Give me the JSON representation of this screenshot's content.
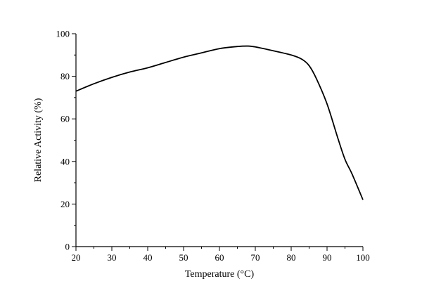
{
  "chart_data": {
    "type": "line",
    "title": "",
    "xlabel": "Temperature (°C)",
    "ylabel": "Relative Activity (%)",
    "xlim": [
      20,
      100
    ],
    "ylim": [
      0,
      100
    ],
    "x_ticks": [
      20,
      30,
      40,
      50,
      60,
      70,
      80,
      90,
      100
    ],
    "y_ticks": [
      0,
      20,
      40,
      60,
      80,
      100
    ],
    "grid": false,
    "legend": "none",
    "series": [
      {
        "color": "#000000",
        "x": [
          20,
          25,
          30,
          35,
          40,
          45,
          50,
          55,
          60,
          65,
          68,
          70,
          75,
          80,
          83,
          85,
          87,
          90,
          93,
          95,
          97,
          100
        ],
        "y": [
          73,
          76.5,
          79.5,
          82,
          84,
          86.5,
          89,
          91,
          93,
          94,
          94.2,
          93.8,
          92,
          90,
          88,
          85,
          79,
          67,
          51,
          41,
          34,
          22
        ]
      }
    ]
  }
}
